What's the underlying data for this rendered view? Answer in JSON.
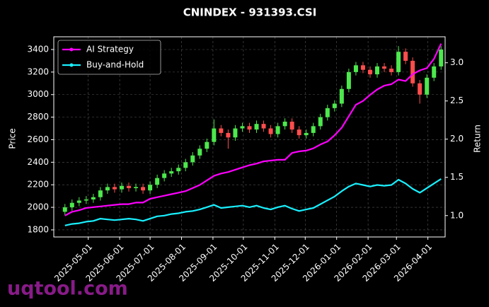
{
  "chart_data": {
    "type": "candlestick",
    "title": "CNINDEX - 931393.CSI",
    "y_label": "Price",
    "y2_label": "Return",
    "watermark": "uqtool.com",
    "up_color": "#4de84d",
    "down_color": "#ff4d4d",
    "grid": true,
    "legend": "upper left",
    "x": [
      "2025-04-08",
      "2025-04-15",
      "2025-04-22",
      "2025-04-29",
      "2025-05-06",
      "2025-05-13",
      "2025-05-20",
      "2025-05-27",
      "2025-06-03",
      "2025-06-10",
      "2025-06-17",
      "2025-06-24",
      "2025-07-01",
      "2025-07-08",
      "2025-07-15",
      "2025-07-22",
      "2025-07-29",
      "2025-08-05",
      "2025-08-12",
      "2025-08-19",
      "2025-08-26",
      "2025-09-02",
      "2025-09-09",
      "2025-09-16",
      "2025-09-23",
      "2025-09-30",
      "2025-10-07",
      "2025-10-14",
      "2025-10-21",
      "2025-10-28",
      "2025-11-04",
      "2025-11-11",
      "2025-11-18",
      "2025-11-25",
      "2025-12-02",
      "2025-12-09",
      "2025-12-16",
      "2025-12-23",
      "2025-12-30",
      "2026-01-06",
      "2026-01-13",
      "2026-01-20",
      "2026-01-27",
      "2026-02-03",
      "2026-02-10",
      "2026-02-17",
      "2026-02-24",
      "2026-03-03",
      "2026-03-10",
      "2026-03-17",
      "2026-03-24",
      "2026-03-31",
      "2026-04-07",
      "2026-04-14"
    ],
    "open": [
      1960,
      2000,
      2040,
      2060,
      2070,
      2090,
      2150,
      2180,
      2160,
      2190,
      2170,
      2180,
      2150,
      2200,
      2260,
      2300,
      2320,
      2350,
      2400,
      2460,
      2520,
      2580,
      2700,
      2660,
      2620,
      2700,
      2720,
      2690,
      2740,
      2700,
      2650,
      2720,
      2760,
      2690,
      2640,
      2660,
      2720,
      2800,
      2880,
      2920,
      3050,
      3200,
      3260,
      3220,
      3180,
      3250,
      3230,
      3200,
      3380,
      3300,
      3100,
      3000,
      3150,
      3250
    ],
    "high": [
      2030,
      2070,
      2090,
      2100,
      2120,
      2180,
      2210,
      2210,
      2220,
      2220,
      2210,
      2210,
      2230,
      2290,
      2330,
      2350,
      2380,
      2430,
      2490,
      2550,
      2610,
      2780,
      2730,
      2690,
      2730,
      2750,
      2750,
      2770,
      2770,
      2730,
      2750,
      2790,
      2790,
      2720,
      2690,
      2750,
      2830,
      2910,
      2950,
      3080,
      3230,
      3290,
      3290,
      3250,
      3280,
      3280,
      3260,
      3430,
      3410,
      3330,
      3130,
      3180,
      3280,
      3430
    ],
    "low": [
      1930,
      1970,
      2010,
      2030,
      2040,
      2060,
      2120,
      2130,
      2130,
      2140,
      2140,
      2120,
      2120,
      2170,
      2230,
      2270,
      2290,
      2320,
      2370,
      2430,
      2490,
      2550,
      2630,
      2520,
      2590,
      2670,
      2660,
      2660,
      2670,
      2620,
      2620,
      2690,
      2660,
      2610,
      2610,
      2630,
      2690,
      2770,
      2850,
      2890,
      3020,
      3170,
      3190,
      3150,
      3150,
      3200,
      3170,
      3170,
      3270,
      3070,
      2920,
      2970,
      3120,
      3220
    ],
    "close": [
      2000,
      2040,
      2060,
      2070,
      2090,
      2150,
      2180,
      2160,
      2190,
      2170,
      2180,
      2150,
      2200,
      2260,
      2300,
      2320,
      2350,
      2400,
      2460,
      2520,
      2580,
      2700,
      2660,
      2620,
      2700,
      2720,
      2690,
      2740,
      2700,
      2650,
      2720,
      2760,
      2690,
      2640,
      2660,
      2720,
      2800,
      2880,
      2920,
      3050,
      3200,
      3260,
      3220,
      3180,
      3250,
      3230,
      3200,
      3380,
      3300,
      3100,
      3000,
      3150,
      3250,
      3400
    ],
    "series": [
      {
        "name": "AI Strategy",
        "color": "#ff00ff",
        "axis": "y2",
        "values": [
          1.0,
          1.05,
          1.07,
          1.1,
          1.11,
          1.12,
          1.13,
          1.14,
          1.15,
          1.15,
          1.17,
          1.17,
          1.22,
          1.24,
          1.26,
          1.28,
          1.3,
          1.32,
          1.36,
          1.4,
          1.46,
          1.52,
          1.55,
          1.57,
          1.6,
          1.63,
          1.66,
          1.68,
          1.71,
          1.72,
          1.73,
          1.73,
          1.82,
          1.84,
          1.85,
          1.88,
          1.93,
          1.97,
          2.05,
          2.15,
          2.3,
          2.45,
          2.5,
          2.58,
          2.65,
          2.7,
          2.72,
          2.78,
          2.76,
          2.85,
          2.9,
          2.93,
          3.05,
          3.25
        ]
      },
      {
        "name": "Buy-and-Hold",
        "color": "#19f0ff",
        "axis": "y2",
        "values": [
          0.87,
          0.89,
          0.9,
          0.92,
          0.93,
          0.96,
          0.95,
          0.94,
          0.95,
          0.96,
          0.95,
          0.93,
          0.96,
          0.99,
          1.0,
          1.02,
          1.03,
          1.05,
          1.06,
          1.08,
          1.11,
          1.14,
          1.1,
          1.11,
          1.12,
          1.13,
          1.11,
          1.13,
          1.1,
          1.08,
          1.11,
          1.13,
          1.09,
          1.06,
          1.08,
          1.1,
          1.15,
          1.2,
          1.25,
          1.32,
          1.38,
          1.42,
          1.4,
          1.38,
          1.4,
          1.39,
          1.4,
          1.47,
          1.42,
          1.35,
          1.3,
          1.36,
          1.42,
          1.48
        ]
      }
    ],
    "xlim": [
      "2025-03-28",
      "2026-04-18"
    ],
    "xticks": [
      "2025-05-01",
      "2025-06-01",
      "2025-07-01",
      "2025-08-01",
      "2025-09-01",
      "2025-10-01",
      "2025-11-01",
      "2025-12-01",
      "2026-01-01",
      "2026-02-01",
      "2026-03-01",
      "2026-04-01"
    ],
    "ylim": [
      1737,
      3513
    ],
    "yticks": [
      1800,
      2000,
      2200,
      2400,
      2600,
      2800,
      3000,
      3200,
      3400
    ],
    "y2lim": [
      0.72,
      3.34
    ],
    "y2ticks": [
      {
        "value": 1,
        "label": "1.0"
      },
      1.5,
      {
        "value": 2,
        "label": "2.0"
      },
      2.5,
      {
        "value": 3,
        "label": "3.0"
      }
    ]
  }
}
